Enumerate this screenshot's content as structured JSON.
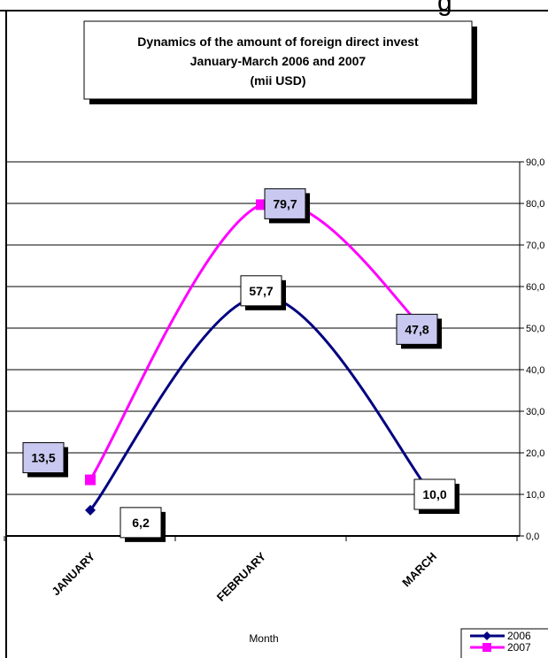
{
  "page": {
    "header_fragment": "g"
  },
  "chart_data": {
    "type": "line",
    "title_lines": [
      "Dynamics of the amount of foreign direct invest",
      "January-March 2006 and  2007",
      "(mii USD)"
    ],
    "xlabel": "Month",
    "ylabel": "",
    "categories": [
      "JANUARY",
      "FEBRUARY",
      "MARCH"
    ],
    "ylim": [
      0,
      90
    ],
    "y_ticks": [
      0,
      10,
      20,
      30,
      40,
      50,
      60,
      70,
      80,
      90
    ],
    "y_tick_labels": [
      "0,0",
      "10,0",
      "20,0",
      "30,0",
      "40,0",
      "50,0",
      "60,0",
      "70,0",
      "80,0",
      "90,0"
    ],
    "y_axis_side": "right",
    "grid": true,
    "legend_position": "bottom-right",
    "series": [
      {
        "name": "2006",
        "values": [
          6.2,
          57.7,
          10.0
        ],
        "labels": [
          "6,2",
          "57,7",
          "10,0"
        ],
        "color": "#000080",
        "marker": "diamond",
        "label_fill": "#ffffff"
      },
      {
        "name": "2007",
        "values": [
          13.5,
          79.7,
          47.8
        ],
        "labels": [
          "13,5",
          "79,7",
          "47,8"
        ],
        "color": "#ff00ff",
        "marker": "square",
        "label_fill": "#c8c8f0"
      }
    ]
  }
}
